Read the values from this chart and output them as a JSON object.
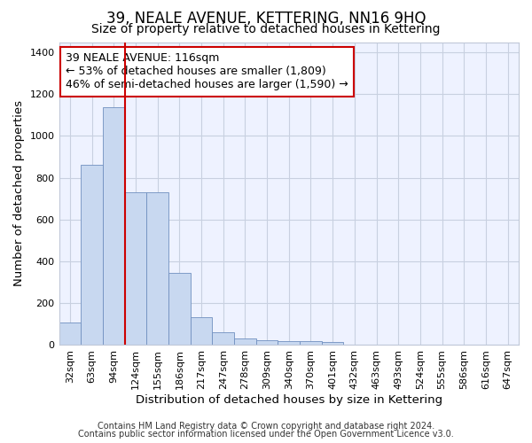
{
  "title": "39, NEALE AVENUE, KETTERING, NN16 9HQ",
  "subtitle": "Size of property relative to detached houses in Kettering",
  "xlabel": "Distribution of detached houses by size in Kettering",
  "ylabel": "Number of detached properties",
  "categories": [
    "32sqm",
    "63sqm",
    "94sqm",
    "124sqm",
    "155sqm",
    "186sqm",
    "217sqm",
    "247sqm",
    "278sqm",
    "309sqm",
    "340sqm",
    "370sqm",
    "401sqm",
    "432sqm",
    "463sqm",
    "493sqm",
    "524sqm",
    "555sqm",
    "586sqm",
    "616sqm",
    "647sqm"
  ],
  "values": [
    105,
    860,
    1140,
    730,
    730,
    345,
    130,
    60,
    30,
    22,
    18,
    15,
    12,
    0,
    0,
    0,
    0,
    0,
    0,
    0,
    0
  ],
  "bar_color": "#c8d8f0",
  "bar_edge_color": "#7090c0",
  "vline_color": "#cc0000",
  "annotation_text": "39 NEALE AVENUE: 116sqm\n← 53% of detached houses are smaller (1,809)\n46% of semi-detached houses are larger (1,590) →",
  "annotation_box_color": "#cc0000",
  "ylim": [
    0,
    1450
  ],
  "yticks": [
    0,
    200,
    400,
    600,
    800,
    1000,
    1200,
    1400
  ],
  "footer_line1": "Contains HM Land Registry data © Crown copyright and database right 2024.",
  "footer_line2": "Contains public sector information licensed under the Open Government Licence v3.0.",
  "bg_color": "#eef2ff",
  "grid_color": "#c8d0e0",
  "title_fontsize": 12,
  "subtitle_fontsize": 10,
  "axis_label_fontsize": 9.5,
  "tick_fontsize": 8,
  "annotation_fontsize": 9,
  "footer_fontsize": 7
}
